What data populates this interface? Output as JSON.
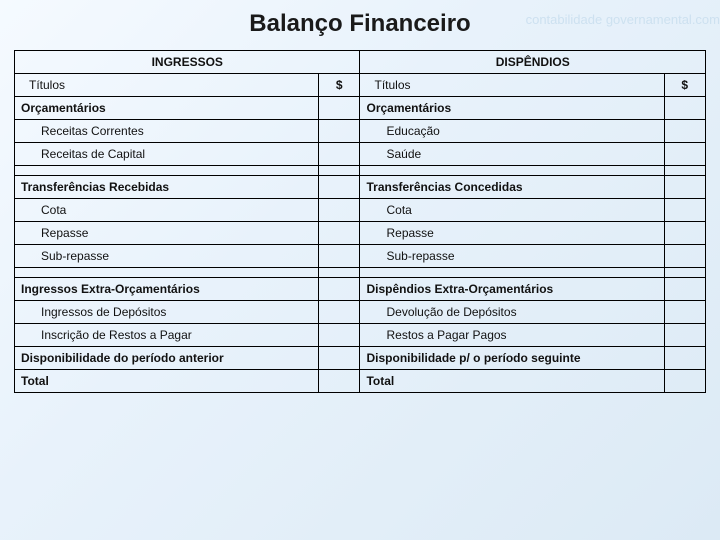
{
  "page": {
    "title": "Balanço Financeiro",
    "watermark": "contabilidade governamental.com",
    "background_gradient": [
      "#f5faff",
      "#e8f2fb",
      "#dceaf5"
    ],
    "border_color": "#000000",
    "text_color": "#111111",
    "title_fontsize": 24,
    "cell_fontsize": 12
  },
  "left": {
    "header": "INGRESSOS",
    "titulos": "Títulos",
    "amt_header": "$",
    "orc": "Orçamentários",
    "orc_items": [
      "Receitas Correntes",
      "Receitas de Capital"
    ],
    "transf": "Transferências Recebidas",
    "transf_items": [
      "Cota",
      "Repasse",
      "Sub-repasse"
    ],
    "extra": "Ingressos Extra-Orçamentários",
    "extra_items": [
      "Ingressos de Depósitos",
      "Inscrição de Restos a Pagar"
    ],
    "disp": "Disponibilidade do período anterior",
    "total": "Total"
  },
  "right": {
    "header": "DISPÊNDIOS",
    "titulos": "Títulos",
    "amt_header": "$",
    "orc": "Orçamentários",
    "orc_items": [
      "Educação",
      "Saúde"
    ],
    "transf": "Transferências Concedidas",
    "transf_items": [
      "Cota",
      "Repasse",
      "Sub-repasse"
    ],
    "extra": "Dispêndios Extra-Orçamentários",
    "extra_items": [
      "Devolução de Depósitos",
      "Restos a Pagar Pagos"
    ],
    "disp": "Disponibilidade p/ o período seguinte",
    "total": "Total"
  }
}
